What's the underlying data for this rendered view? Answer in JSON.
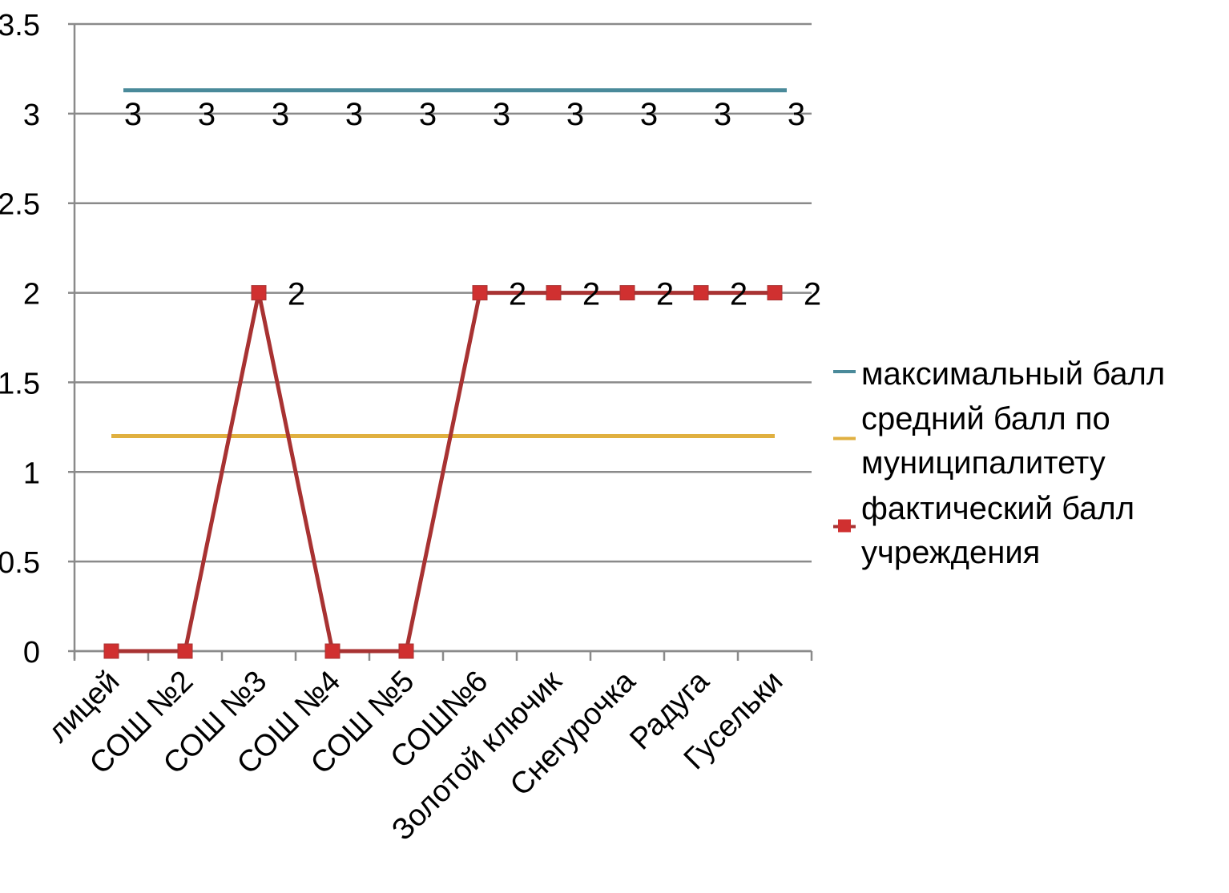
{
  "chart_data": {
    "type": "line",
    "categories": [
      "лицей",
      "СОШ №2",
      "СОШ №3",
      "СОШ №4",
      "СОШ №5",
      "СОШ№6",
      "Золотой ключик",
      "Снегурочка",
      "Радуга",
      "Гусельки"
    ],
    "ylim": [
      0,
      3.5
    ],
    "yticks": [
      0,
      0.5,
      1,
      1.5,
      2,
      2.5,
      3,
      3.5
    ],
    "ytick_labels": [
      "0",
      "0.5",
      "1",
      "1.5",
      "2",
      "2.5",
      "3",
      "3.5"
    ],
    "grid": true,
    "legend_position": "right",
    "series": [
      {
        "name_lines": [
          "максимальный балл"
        ],
        "values": [
          3.13,
          3.13,
          3.13,
          3.13,
          3.13,
          3.13,
          3.13,
          3.13,
          3.13,
          3.13
        ],
        "data_labels": [
          "3",
          "3",
          "3",
          "3",
          "3",
          "3",
          "3",
          "3",
          "3",
          "3"
        ],
        "color": "#4a8a9a",
        "marker": "none"
      },
      {
        "name_lines": [
          "средний балл по",
          "муниципалитету"
        ],
        "values": [
          1.2,
          1.2,
          1.2,
          1.2,
          1.2,
          1.2,
          1.2,
          1.2,
          1.2,
          1.2
        ],
        "data_labels": [],
        "color": "#e0b040",
        "marker": "none"
      },
      {
        "name_lines": [
          "фактический балл",
          "учреждения"
        ],
        "values": [
          0,
          0,
          2,
          0,
          0,
          2,
          2,
          2,
          2,
          2
        ],
        "data_labels": [
          "",
          "",
          "2",
          "",
          "",
          "2",
          "2",
          "2",
          "2",
          "2"
        ],
        "color": "#a83232",
        "marker_color": "#d03030",
        "marker": "square"
      }
    ]
  }
}
